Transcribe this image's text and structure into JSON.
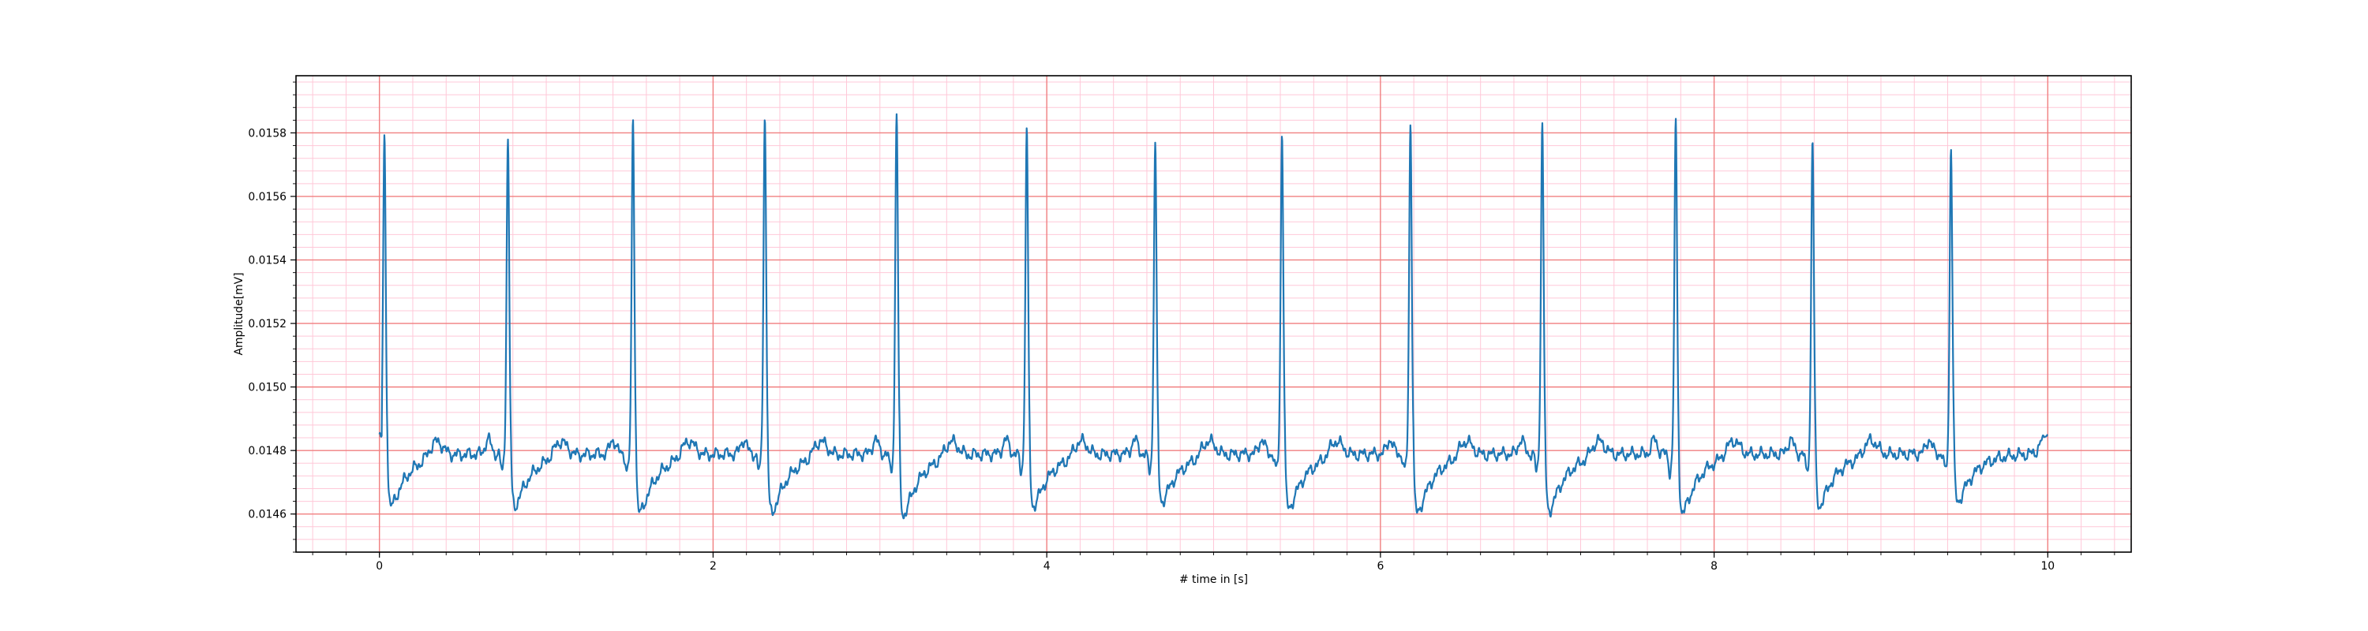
{
  "chart_data": {
    "type": "line",
    "title": "",
    "xlabel": "# time in [s]",
    "ylabel": "Amplitude[mV]",
    "xlim": [
      -0.5,
      10.5
    ],
    "ylim": [
      0.01448,
      0.01598
    ],
    "x_ticks": [
      0,
      2,
      4,
      6,
      8,
      10
    ],
    "x_tick_labels": [
      "0",
      "2",
      "4",
      "6",
      "8",
      "10"
    ],
    "y_ticks": [
      0.0146,
      0.0148,
      0.015,
      0.0152,
      0.0154,
      0.0156,
      0.0158
    ],
    "y_tick_labels": [
      "0.0146",
      "0.0148",
      "0.0150",
      "0.0152",
      "0.0154",
      "0.0156",
      "0.0158"
    ],
    "grid": {
      "major": true,
      "major_color": "#f08080",
      "minor": true,
      "minor_color": "#ffc8d8",
      "x_minor_step": 0.2,
      "y_minor_step": 4e-05
    },
    "legend": "none",
    "series": [
      {
        "color": "#1f77b4",
        "baseline": 0.01479,
        "r_peaks": [
          {
            "t": 0.03,
            "peak": 0.01578,
            "trough": 0.01456
          },
          {
            "t": 0.77,
            "peak": 0.01578,
            "trough": 0.01456
          },
          {
            "t": 1.52,
            "peak": 0.01584,
            "trough": 0.01453
          },
          {
            "t": 2.31,
            "peak": 0.01586,
            "trough": 0.01453
          },
          {
            "t": 3.1,
            "peak": 0.01587,
            "trough": 0.01452
          },
          {
            "t": 3.88,
            "peak": 0.01581,
            "trough": 0.01456
          },
          {
            "t": 4.65,
            "peak": 0.01577,
            "trough": 0.01458
          },
          {
            "t": 5.41,
            "peak": 0.0158,
            "trough": 0.01455
          },
          {
            "t": 6.18,
            "peak": 0.01583,
            "trough": 0.01453
          },
          {
            "t": 6.97,
            "peak": 0.01583,
            "trough": 0.01454
          },
          {
            "t": 7.77,
            "peak": 0.01583,
            "trough": 0.01453
          },
          {
            "t": 8.59,
            "peak": 0.01578,
            "trough": 0.01456
          },
          {
            "t": 9.42,
            "peak": 0.01576,
            "trough": 0.01458
          }
        ],
        "start_value": 0.01484,
        "end_value": 0.01485,
        "t_start": 0.0,
        "t_end": 10.0
      }
    ]
  }
}
